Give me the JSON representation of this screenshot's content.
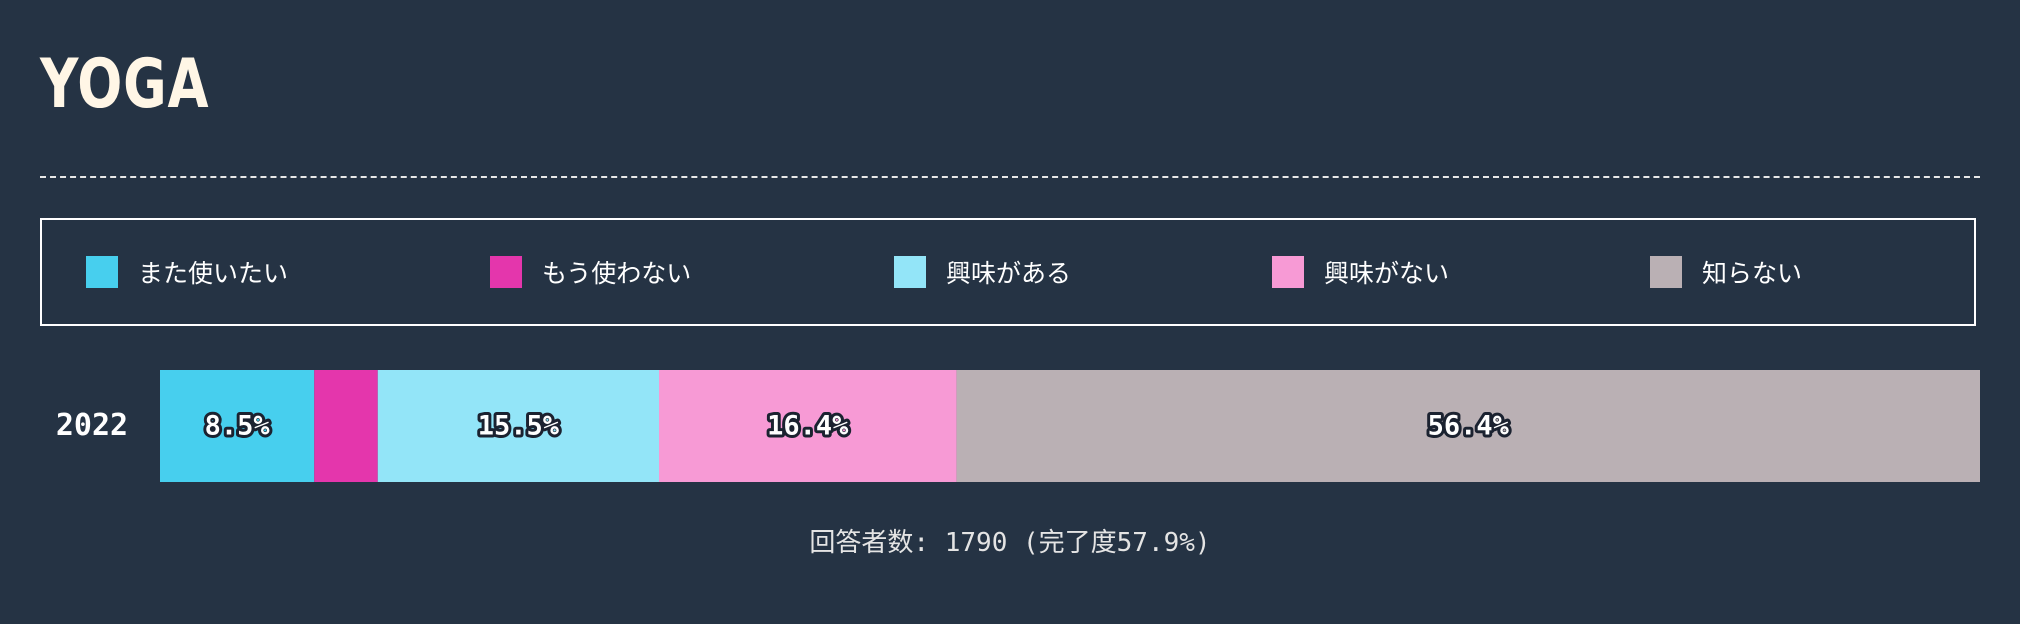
{
  "page": {
    "title": "YOGA",
    "footer": "回答者数: 1790 (完了度57.9%)"
  },
  "colors": {
    "background": "#253344",
    "title": "#fff6e6"
  },
  "chart_data": {
    "type": "bar",
    "orientation": "horizontal-stacked-100",
    "categories": [
      "2022"
    ],
    "legend_position": "top",
    "grid": false,
    "xlim": [
      0,
      100
    ],
    "series": [
      {
        "name": "また使いたい",
        "values": [
          8.5
        ],
        "color": "#47cfee",
        "label": "8.5%"
      },
      {
        "name": "もう使わない",
        "values": [
          3.5
        ],
        "color": "#e436ac",
        "label": ""
      },
      {
        "name": "興味がある",
        "values": [
          15.5
        ],
        "color": "#93e5f8",
        "label": "15.5%"
      },
      {
        "name": "興味がない",
        "values": [
          16.4
        ],
        "color": "#f79ad5",
        "label": "16.4%"
      },
      {
        "name": "知らない",
        "values": [
          56.4
        ],
        "color": "#bab0b4",
        "label": "56.4%"
      }
    ]
  }
}
